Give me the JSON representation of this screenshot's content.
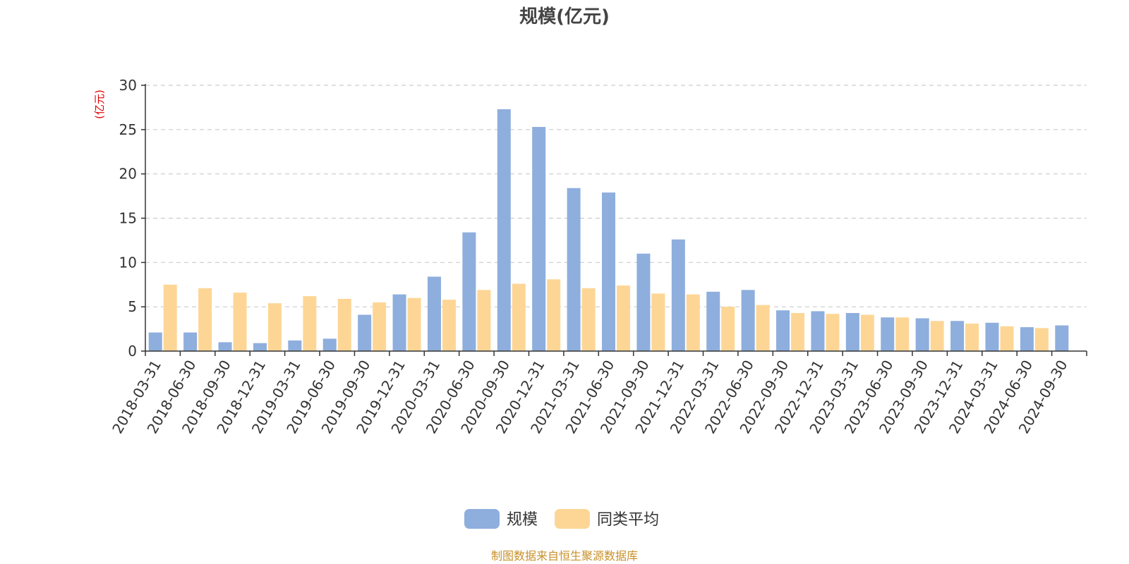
{
  "chart_data": {
    "type": "bar",
    "title": "规模(亿元)",
    "ylabel": "(亿元)",
    "ylim": [
      0,
      30
    ],
    "yticks": [
      0,
      5,
      10,
      15,
      20,
      25,
      30
    ],
    "grid": true,
    "legend_position": "bottom-center",
    "categories": [
      "2018-03-31",
      "2018-06-30",
      "2018-09-30",
      "2018-12-31",
      "2019-03-31",
      "2019-06-30",
      "2019-09-30",
      "2019-12-31",
      "2020-03-31",
      "2020-06-30",
      "2020-09-30",
      "2020-12-31",
      "2021-03-31",
      "2021-06-30",
      "2021-09-30",
      "2021-12-31",
      "2022-03-31",
      "2022-06-30",
      "2022-09-30",
      "2022-12-31",
      "2023-03-31",
      "2023-06-30",
      "2023-09-30",
      "2023-12-31",
      "2024-03-31",
      "2024-06-30",
      "2024-09-30"
    ],
    "series": [
      {
        "name": "规模",
        "color": "#8eaedd",
        "values": [
          2.1,
          2.1,
          1.0,
          0.9,
          1.2,
          1.4,
          4.1,
          6.4,
          8.4,
          13.4,
          27.3,
          25.3,
          18.4,
          17.9,
          11.0,
          12.6,
          6.7,
          6.9,
          4.6,
          4.5,
          4.3,
          3.8,
          3.7,
          3.4,
          3.2,
          2.7,
          2.9
        ]
      },
      {
        "name": "同类平均",
        "color": "#fdd696",
        "values": [
          7.5,
          7.1,
          6.6,
          5.4,
          6.2,
          5.9,
          5.5,
          6.0,
          5.8,
          6.9,
          7.6,
          8.1,
          7.1,
          7.4,
          6.5,
          6.4,
          5.0,
          5.2,
          4.3,
          4.2,
          4.1,
          3.8,
          3.4,
          3.1,
          2.8,
          2.6,
          null
        ]
      }
    ],
    "source_note": "制图数据来自恒生聚源数据库"
  },
  "colors": {
    "grid": "#cccccc",
    "axis": "#333333",
    "unit": "#e00000",
    "source": "#c8902a"
  }
}
